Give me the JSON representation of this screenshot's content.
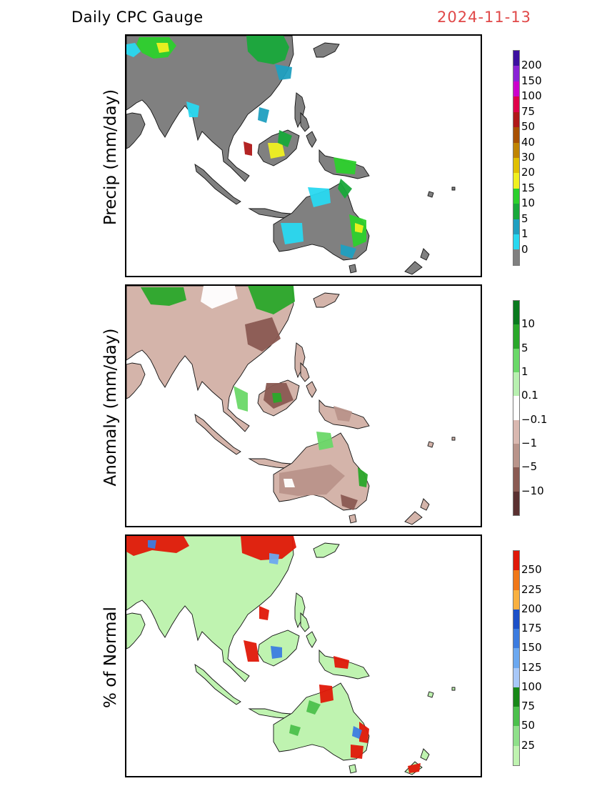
{
  "header": {
    "title": "Daily CPC Gauge",
    "date": "2024-11-13"
  },
  "panels": [
    {
      "ylabel": "Precip (mm/day)",
      "colors": [
        "#808080",
        "#28d8f0",
        "#1f9fc0",
        "#18a83a",
        "#2cd02c",
        "#f0f020",
        "#e0c000",
        "#c08400",
        "#a85000",
        "#b01818",
        "#e0004a",
        "#cc00cc",
        "#8a22d6",
        "#3c10a0"
      ],
      "ticks": [
        "0",
        "1",
        "5",
        "10",
        "15",
        "20",
        "30",
        "40",
        "50",
        "75",
        "100",
        "150",
        "200"
      ],
      "land": "#808080"
    },
    {
      "ylabel": "Anomaly (mm/day)",
      "colors": [
        "#5a3030",
        "#8a5a52",
        "#b9948a",
        "#d9b8b0",
        "#ffffff",
        "#b8f0b0",
        "#6ad868",
        "#2aa82a",
        "#0a7a1e"
      ],
      "ticks": [
        "-10",
        "-5",
        "-1",
        "-0.1",
        "0.1",
        "1",
        "5",
        "10"
      ],
      "land": "#d4b4aa"
    },
    {
      "ylabel": "% of Normal",
      "colors": [
        "#bff3b0",
        "#8fe08a",
        "#4cc04c",
        "#188818",
        "#a8c8f8",
        "#6ca8f0",
        "#3c7ce0",
        "#1c50c8",
        "#f8b040",
        "#f07818",
        "#e01808"
      ],
      "ticks": [
        "25",
        "50",
        "75",
        "100",
        "125",
        "150",
        "175",
        "200",
        "225",
        "250"
      ],
      "land": "#bff3b0"
    }
  ]
}
